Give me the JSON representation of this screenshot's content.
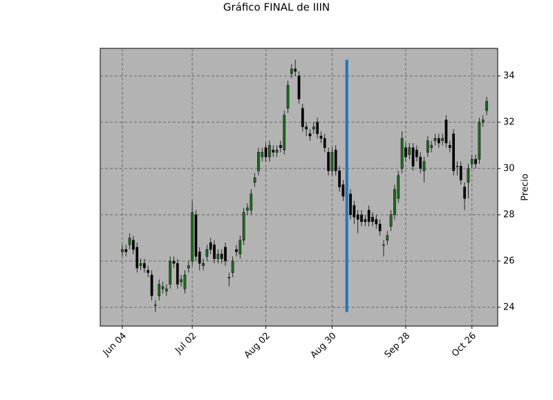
{
  "chart_data": {
    "type": "candlestick",
    "title": "Gráfico FINAL de IIIN",
    "ylabel": "Precio",
    "open": [
      26.4,
      26.5,
      26.7,
      26.9,
      26.6,
      25.8,
      25.9,
      25.6,
      25.4,
      24.1,
      24.5,
      24.8,
      24.7,
      25.0,
      26.0,
      25.9,
      25.1,
      24.8,
      25.7,
      26.0,
      28.0,
      26.4,
      25.8,
      26.2,
      26.8,
      26.7,
      26.1,
      26.3,
      26.6,
      25.3,
      25.5,
      26.5,
      26.3,
      26.9,
      28.2,
      28.2,
      29.4,
      29.9,
      30.5,
      30.9,
      30.5,
      30.8,
      30.7,
      31.0,
      30.8,
      32.6,
      34.1,
      34.3,
      34.0,
      32.6,
      31.8,
      31.5,
      31.7,
      32.0,
      31.4,
      31.3,
      30.7,
      29.9,
      30.8,
      29.9,
      29.3,
      28.7,
      28.9,
      28.4,
      28.0,
      28.0,
      27.8,
      28.2,
      27.9,
      27.8,
      27.6,
      26.7,
      26.9,
      27.5,
      28.0,
      28.7,
      30.0,
      30.9,
      30.6,
      30.9,
      30.8,
      30.5,
      29.9,
      30.7,
      30.9,
      31.2,
      31.3,
      31.2,
      32.1,
      31.0,
      31.5,
      30.1,
      30.1,
      29.2,
      29.4,
      30.2,
      30.4,
      30.4,
      32.0,
      32.5
    ],
    "high": [
      26.7,
      26.7,
      27.2,
      27.1,
      26.8,
      26.1,
      26.1,
      25.8,
      25.6,
      24.3,
      25.2,
      25.1,
      25.0,
      26.2,
      26.2,
      26.1,
      25.4,
      25.6,
      26.0,
      28.6,
      28.2,
      26.6,
      26.1,
      26.7,
      27.0,
      26.9,
      26.5,
      26.5,
      26.8,
      25.5,
      26.2,
      26.7,
      27.1,
      28.3,
      28.5,
      29.1,
      29.8,
      30.9,
      30.9,
      31.1,
      31.2,
      31.0,
      31.0,
      31.2,
      32.5,
      33.8,
      34.5,
      34.7,
      34.2,
      32.8,
      32.0,
      31.7,
      32.0,
      32.2,
      31.6,
      31.5,
      30.9,
      30.9,
      31.0,
      30.1,
      29.5,
      29.1,
      29.1,
      28.6,
      28.2,
      28.2,
      28.0,
      28.4,
      28.1,
      28.0,
      27.8,
      26.9,
      27.3,
      28.2,
      29.3,
      29.9,
      31.6,
      31.1,
      31.1,
      31.1,
      31.0,
      30.7,
      30.5,
      31.4,
      31.2,
      31.5,
      31.5,
      31.5,
      32.3,
      31.2,
      31.7,
      30.3,
      30.3,
      29.4,
      30.2,
      30.6,
      30.6,
      32.2,
      32.3,
      33.1
    ],
    "low": [
      26.2,
      26.2,
      26.5,
      26.3,
      25.5,
      25.6,
      25.5,
      25.3,
      24.3,
      23.8,
      24.3,
      24.6,
      24.5,
      24.8,
      25.7,
      24.8,
      24.9,
      24.6,
      25.5,
      25.8,
      26.0,
      25.6,
      25.6,
      26.0,
      26.3,
      25.9,
      25.9,
      25.9,
      25.8,
      24.9,
      25.3,
      26.2,
      26.1,
      26.7,
      28.0,
      28.0,
      29.2,
      29.7,
      30.3,
      30.3,
      30.3,
      30.5,
      30.5,
      30.7,
      30.6,
      32.4,
      33.9,
      34.0,
      32.8,
      31.6,
      31.4,
      31.2,
      31.5,
      31.3,
      31.1,
      30.7,
      29.7,
      29.7,
      29.7,
      29.0,
      28.6,
      28.5,
      27.8,
      27.6,
      27.2,
      27.5,
      27.5,
      27.5,
      27.5,
      27.4,
      27.1,
      26.2,
      26.7,
      27.3,
      27.8,
      28.5,
      29.8,
      30.3,
      30.4,
      29.9,
      30.3,
      29.8,
      29.4,
      30.5,
      30.7,
      31.0,
      30.9,
      31.0,
      30.9,
      30.7,
      29.7,
      29.7,
      29.3,
      28.2,
      28.7,
      30.0,
      30.0,
      30.2,
      31.8,
      32.3
    ],
    "close": [
      26.5,
      26.4,
      27.0,
      26.5,
      25.7,
      25.9,
      25.7,
      25.5,
      24.5,
      24.1,
      25.0,
      24.9,
      24.8,
      26.0,
      25.9,
      25.0,
      25.2,
      25.4,
      25.8,
      28.1,
      26.2,
      25.9,
      25.9,
      26.5,
      26.5,
      26.1,
      26.3,
      26.1,
      26.0,
      25.3,
      26.0,
      26.4,
      26.9,
      28.1,
      28.3,
      28.9,
      29.6,
      30.7,
      30.7,
      30.5,
      31.0,
      30.7,
      30.8,
      30.9,
      32.3,
      33.6,
      34.3,
      34.2,
      33.0,
      31.8,
      31.7,
      31.4,
      31.8,
      31.5,
      31.3,
      30.9,
      29.9,
      30.7,
      29.9,
      29.2,
      28.8,
      28.9,
      28.0,
      27.9,
      27.8,
      27.7,
      27.7,
      27.7,
      27.7,
      27.6,
      27.3,
      26.7,
      27.1,
      28.0,
      29.1,
      29.7,
      31.3,
      30.5,
      30.9,
      30.1,
      30.5,
      30.0,
      30.3,
      31.2,
      31.0,
      31.3,
      31.1,
      31.3,
      31.1,
      30.9,
      29.9,
      30.1,
      29.5,
      28.7,
      30.0,
      30.4,
      30.2,
      32.0,
      32.1,
      32.9
    ],
    "up_color": "#1f6e1f",
    "down_color": "#000000",
    "xlim": [
      -6,
      102
    ],
    "xticks": [
      {
        "value": 0,
        "label": "Jun 04"
      },
      {
        "value": 19,
        "label": "Jul 02"
      },
      {
        "value": 39,
        "label": "Aug 02"
      },
      {
        "value": 57,
        "label": "Aug 30"
      },
      {
        "value": 77,
        "label": "Sep 28"
      },
      {
        "value": 95,
        "label": "Oct 26"
      }
    ],
    "ylim": [
      23.19,
      35.19
    ],
    "yticks": [
      24,
      26,
      28,
      30,
      32,
      34
    ],
    "grid": true,
    "vline": {
      "x": 61,
      "ymin": 23.8,
      "ymax": 34.7,
      "color": "#1f77b4"
    }
  }
}
